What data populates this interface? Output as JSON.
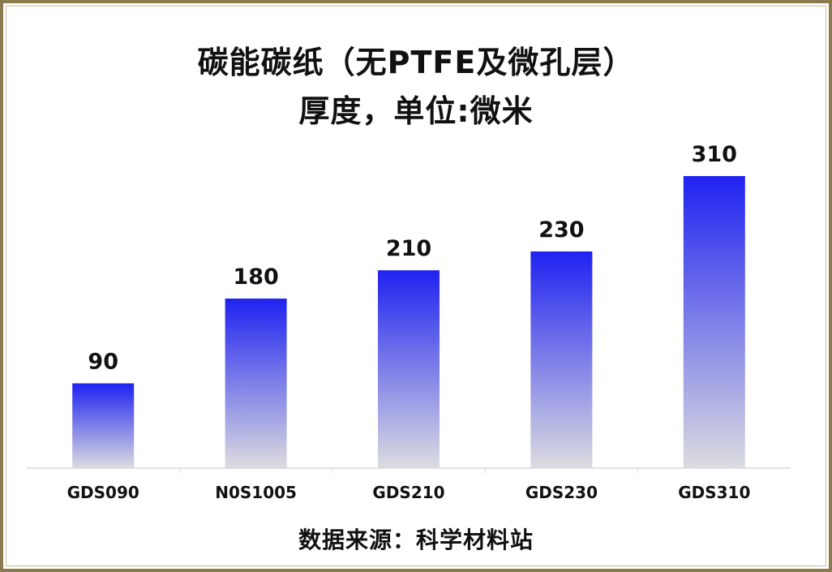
{
  "title_line1": "碳能碳纸（无PTFE及微孔层）",
  "title_line2": "厚度，单位:微米",
  "source_note": "数据来源：科学材料站",
  "colors": {
    "bar_top": "#1f22f0",
    "bar_bottom": "#dcdce0",
    "frame": "#8a7a4e",
    "axis": "#d9d9d9"
  },
  "chart_data": {
    "type": "bar",
    "title": "碳能碳纸（无PTFE及微孔层）厚度，单位:微米",
    "categories": [
      "GDS090",
      "N0S1005",
      "GDS210",
      "GDS230",
      "GDS310"
    ],
    "values": [
      90,
      180,
      210,
      230,
      310
    ],
    "data_labels": [
      "90",
      "180",
      "210",
      "230",
      "310"
    ],
    "ylim": [
      0,
      310
    ],
    "grid": false,
    "legend": "none",
    "xlabel": "",
    "ylabel": ""
  }
}
